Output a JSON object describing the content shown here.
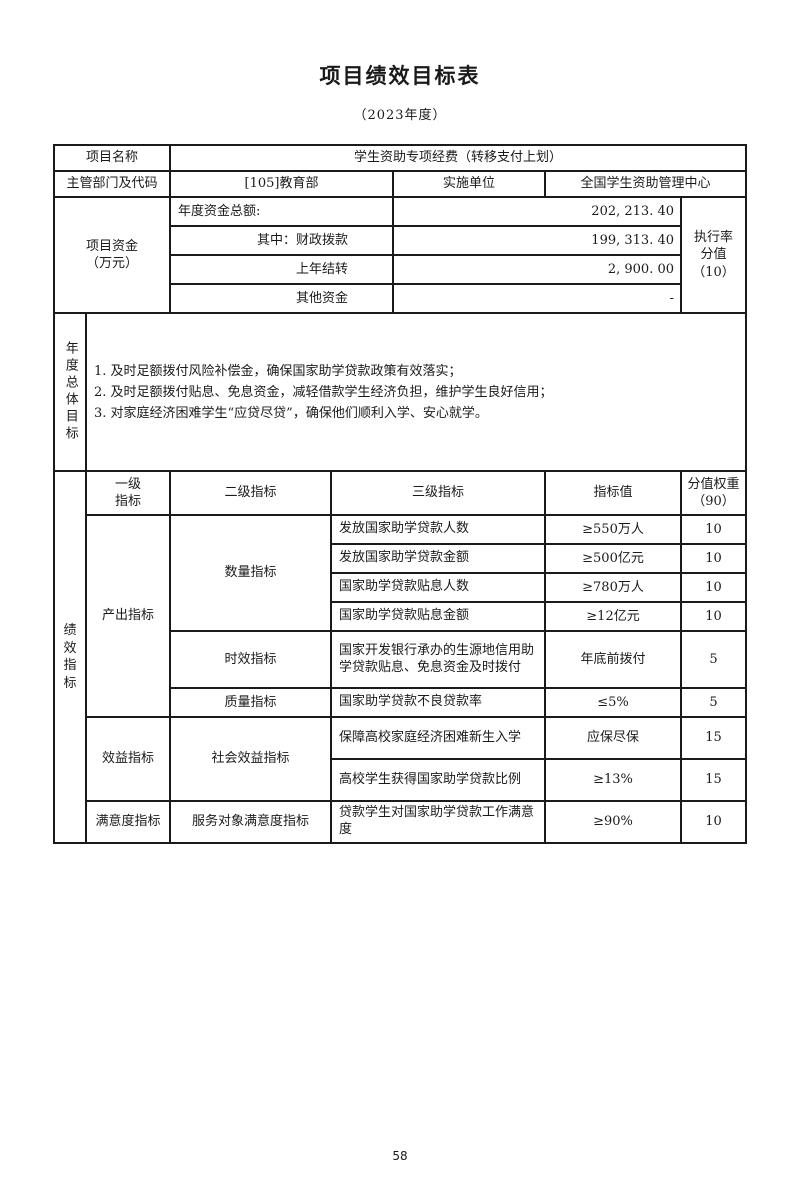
{
  "page": {
    "title": "项目绩效目标表",
    "subtitle": "（2023年度）",
    "page_number": "58"
  },
  "colors": {
    "text": "#1a1a1a",
    "border": "#1a1a1a",
    "background": "#ffffff"
  },
  "info": {
    "project_name_label": "项目名称",
    "project_name_value": "学生资助专项经费（转移支付上划）",
    "department_label": "主管部门及代码",
    "department_value": "[105]教育部",
    "implement_unit_label": "实施单位",
    "implement_unit_value": "全国学生资助管理中心"
  },
  "funding": {
    "section_label": "项目资金\n（万元）",
    "rows": [
      {
        "label": "年度资金总额:",
        "value": "202, 213. 40"
      },
      {
        "label": "其中：财政拨款",
        "value": "199, 313. 40"
      },
      {
        "label": "上年结转",
        "value": "2, 900. 00"
      },
      {
        "label": "其他资金",
        "value": "-"
      }
    ],
    "execution_rate_label": "执行率\n分值\n（10）"
  },
  "annual_goals": {
    "section_label": "年度总体目标",
    "content": "1. 及时足额拨付风险补偿金，确保国家助学贷款政策有效落实；\n2. 及时足额拨付贴息、免息资金，减轻借款学生经济负担，维护学生良好信用；\n3. 对家庭经济困难学生“应贷尽贷”，确保他们顺利入学、安心就学。"
  },
  "indicators": {
    "section_label": "绩效指标",
    "headers": {
      "level1": "一级\n指标",
      "level2": "二级指标",
      "level3": "三级指标",
      "value": "指标值",
      "weight": "分值权重\n（90）"
    },
    "level1_groups": {
      "output": "产出指标",
      "benefit": "效益指标",
      "satisfaction": "满意度指标"
    },
    "level2_groups": {
      "quantity": "数量指标",
      "timeliness": "时效指标",
      "quality": "质量指标",
      "social": "社会效益指标",
      "service": "服务对象满意度指标"
    },
    "rows": [
      {
        "level3": "发放国家助学贷款人数",
        "value": "≥550万人",
        "weight": "10"
      },
      {
        "level3": "发放国家助学贷款金额",
        "value": "≥500亿元",
        "weight": "10"
      },
      {
        "level3": "国家助学贷款贴息人数",
        "value": "≥780万人",
        "weight": "10"
      },
      {
        "level3": "国家助学贷款贴息金额",
        "value": "≥12亿元",
        "weight": "10"
      },
      {
        "level3": "国家开发银行承办的生源地信用助学贷款贴息、免息资金及时拨付",
        "value": "年底前拨付",
        "weight": "5"
      },
      {
        "level3": "国家助学贷款不良贷款率",
        "value": "≤5%",
        "weight": "5"
      },
      {
        "level3": "保障高校家庭经济困难新生入学",
        "value": "应保尽保",
        "weight": "15"
      },
      {
        "level3": "高校学生获得国家助学贷款比例",
        "value": "≥13%",
        "weight": "15"
      },
      {
        "level3": "贷款学生对国家助学贷款工作满意度",
        "value": "≥90%",
        "weight": "10"
      }
    ]
  }
}
